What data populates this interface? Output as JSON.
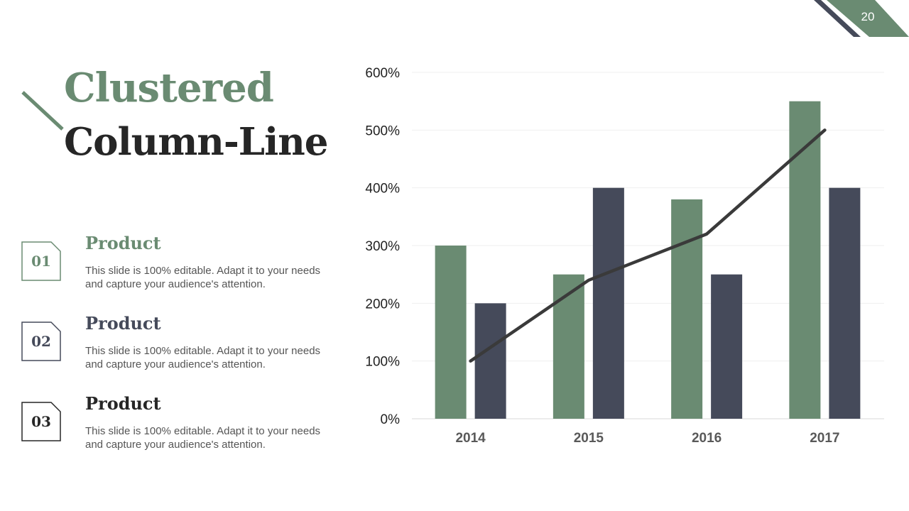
{
  "page_number": "20",
  "title": {
    "line1": "Clustered",
    "line2": "Column-Line"
  },
  "items": [
    {
      "number": "01",
      "heading": "Product",
      "text": "This slide is 100% editable. Adapt it to your needs and capture your audience's attention.",
      "color": "#6a8b72"
    },
    {
      "number": "02",
      "heading": "Product",
      "text": "This slide is 100% editable. Adapt it to your needs and capture your audience's attention.",
      "color": "#454a5a"
    },
    {
      "number": "03",
      "heading": "Product",
      "text": "This slide is 100% editable. Adapt it to your needs and capture your audience's attention.",
      "color": "#262626"
    }
  ],
  "colors": {
    "green": "#6a8b72",
    "navy": "#454a5a",
    "line": "#3a3a3a",
    "title_dark": "#262626"
  },
  "chart_data": {
    "type": "bar",
    "categories": [
      "2014",
      "2015",
      "2016",
      "2017"
    ],
    "series": [
      {
        "kind": "bar",
        "color": "#6a8b72",
        "values": [
          300,
          250,
          380,
          550
        ]
      },
      {
        "kind": "bar",
        "color": "#454a5a",
        "values": [
          200,
          400,
          250,
          400
        ]
      },
      {
        "kind": "line",
        "color": "#3a3a3a",
        "values": [
          100,
          240,
          320,
          500
        ]
      }
    ],
    "y_ticks": [
      "0%",
      "100%",
      "200%",
      "300%",
      "400%",
      "500%",
      "600%"
    ],
    "ylim": [
      0,
      600
    ],
    "y_unit": "%",
    "grid": true,
    "legend": "none"
  }
}
